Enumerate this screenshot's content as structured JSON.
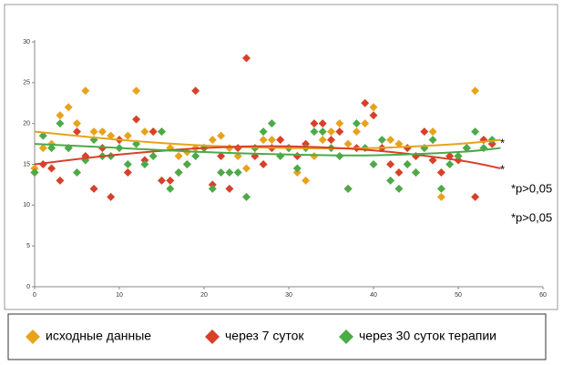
{
  "chart_data": {
    "type": "scatter",
    "x": [
      0,
      1,
      2,
      3,
      4,
      5,
      6,
      7,
      8,
      9,
      10,
      11,
      12,
      13,
      14,
      15,
      16,
      17,
      18,
      19,
      20,
      21,
      22,
      23,
      24,
      25,
      26,
      27,
      28,
      29,
      30,
      31,
      32,
      33,
      34,
      35,
      36,
      37,
      38,
      39,
      40,
      41,
      42,
      43,
      44,
      45,
      46,
      47,
      48,
      49,
      50,
      51,
      52,
      53,
      54
    ],
    "series": [
      {
        "name": "исходные данные",
        "color": "#e8a21c",
        "values": [
          14.5,
          17,
          17.5,
          21,
          22,
          20,
          24,
          19,
          19,
          18.5,
          18,
          18.5,
          24,
          19,
          19,
          19,
          17,
          16,
          16.5,
          17,
          17,
          18,
          18.5,
          17,
          16,
          14.5,
          17,
          18,
          18,
          18,
          17,
          14,
          13,
          16,
          18,
          19,
          20,
          17.5,
          19,
          20,
          22,
          17,
          18,
          17.5,
          15,
          14,
          17,
          19,
          11,
          16,
          16,
          17,
          24,
          18,
          17.5
        ],
        "trend": {
          "x": [
            0,
            10,
            20,
            30,
            40,
            50,
            55
          ],
          "values": [
            19,
            18,
            17.3,
            17,
            17,
            17.5,
            18
          ]
        }
      },
      {
        "name": "через 7 суток",
        "color": "#d8402a",
        "values": [
          14,
          15,
          14.5,
          13,
          17,
          19,
          16,
          12,
          17,
          11,
          18,
          14,
          20.5,
          15.5,
          19,
          13,
          13,
          14,
          15,
          24,
          17,
          12.5,
          16,
          12,
          17,
          28,
          16,
          15,
          17,
          18,
          17,
          16,
          17.5,
          20,
          20,
          18,
          19,
          12,
          17,
          22.5,
          21,
          17,
          15,
          14,
          17,
          16,
          19,
          15.5,
          14,
          16,
          15.5,
          17,
          11,
          18,
          17.5
        ],
        "trend": {
          "x": [
            0,
            10,
            20,
            30,
            40,
            50,
            55
          ],
          "values": [
            15,
            16.2,
            17,
            17.2,
            16.7,
            15.5,
            14.5
          ]
        }
      },
      {
        "name": "через 30 суток терапии",
        "color": "#4caa48",
        "values": [
          14,
          18.5,
          17,
          20,
          17,
          14,
          15.5,
          18,
          16,
          16,
          17,
          15,
          17.5,
          15,
          16,
          19,
          12,
          14,
          15,
          16,
          17,
          12,
          14,
          14,
          14,
          11,
          17,
          19,
          20,
          16,
          17,
          14.5,
          17,
          19,
          19,
          17,
          16,
          12,
          20,
          17,
          15,
          18,
          13,
          12,
          15,
          14,
          17,
          18,
          12,
          15,
          16,
          17,
          19,
          17,
          18
        ],
        "trend": {
          "x": [
            0,
            10,
            20,
            30,
            40,
            50,
            55
          ],
          "values": [
            17.5,
            17,
            16.5,
            16.2,
            16.1,
            16.5,
            17
          ]
        }
      }
    ],
    "xlim": [
      0,
      60
    ],
    "xticks": [
      0,
      10,
      20,
      30,
      40,
      50,
      60
    ],
    "ylim": [
      0,
      30
    ],
    "yticks": [
      0,
      5,
      10,
      15,
      20,
      25,
      30
    ],
    "annotations": [
      "*",
      "*",
      "*p>0,05",
      "*p>0,05"
    ],
    "legend": "bottom"
  }
}
